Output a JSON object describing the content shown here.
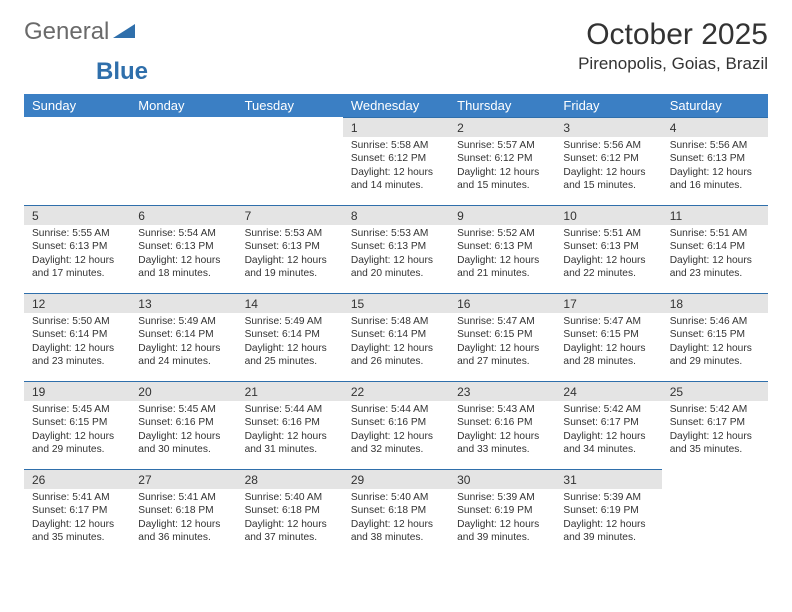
{
  "brand": {
    "part1": "General",
    "part2": "Blue"
  },
  "header": {
    "title": "October 2025",
    "location": "Pirenopolis, Goias, Brazil"
  },
  "colors": {
    "header_bg": "#3b7fc4",
    "header_text": "#ffffff",
    "daynum_bg": "#e4e4e4",
    "day_border": "#2f6fab",
    "text": "#333333",
    "page_bg": "#ffffff"
  },
  "weekdays": [
    "Sunday",
    "Monday",
    "Tuesday",
    "Wednesday",
    "Thursday",
    "Friday",
    "Saturday"
  ],
  "weeks": [
    [
      {
        "empty": true
      },
      {
        "empty": true
      },
      {
        "empty": true
      },
      {
        "day": "1",
        "sunrise": "5:58 AM",
        "sunset": "6:12 PM",
        "daylight": "12 hours and 14 minutes."
      },
      {
        "day": "2",
        "sunrise": "5:57 AM",
        "sunset": "6:12 PM",
        "daylight": "12 hours and 15 minutes."
      },
      {
        "day": "3",
        "sunrise": "5:56 AM",
        "sunset": "6:12 PM",
        "daylight": "12 hours and 15 minutes."
      },
      {
        "day": "4",
        "sunrise": "5:56 AM",
        "sunset": "6:13 PM",
        "daylight": "12 hours and 16 minutes."
      }
    ],
    [
      {
        "day": "5",
        "sunrise": "5:55 AM",
        "sunset": "6:13 PM",
        "daylight": "12 hours and 17 minutes."
      },
      {
        "day": "6",
        "sunrise": "5:54 AM",
        "sunset": "6:13 PM",
        "daylight": "12 hours and 18 minutes."
      },
      {
        "day": "7",
        "sunrise": "5:53 AM",
        "sunset": "6:13 PM",
        "daylight": "12 hours and 19 minutes."
      },
      {
        "day": "8",
        "sunrise": "5:53 AM",
        "sunset": "6:13 PM",
        "daylight": "12 hours and 20 minutes."
      },
      {
        "day": "9",
        "sunrise": "5:52 AM",
        "sunset": "6:13 PM",
        "daylight": "12 hours and 21 minutes."
      },
      {
        "day": "10",
        "sunrise": "5:51 AM",
        "sunset": "6:13 PM",
        "daylight": "12 hours and 22 minutes."
      },
      {
        "day": "11",
        "sunrise": "5:51 AM",
        "sunset": "6:14 PM",
        "daylight": "12 hours and 23 minutes."
      }
    ],
    [
      {
        "day": "12",
        "sunrise": "5:50 AM",
        "sunset": "6:14 PM",
        "daylight": "12 hours and 23 minutes."
      },
      {
        "day": "13",
        "sunrise": "5:49 AM",
        "sunset": "6:14 PM",
        "daylight": "12 hours and 24 minutes."
      },
      {
        "day": "14",
        "sunrise": "5:49 AM",
        "sunset": "6:14 PM",
        "daylight": "12 hours and 25 minutes."
      },
      {
        "day": "15",
        "sunrise": "5:48 AM",
        "sunset": "6:14 PM",
        "daylight": "12 hours and 26 minutes."
      },
      {
        "day": "16",
        "sunrise": "5:47 AM",
        "sunset": "6:15 PM",
        "daylight": "12 hours and 27 minutes."
      },
      {
        "day": "17",
        "sunrise": "5:47 AM",
        "sunset": "6:15 PM",
        "daylight": "12 hours and 28 minutes."
      },
      {
        "day": "18",
        "sunrise": "5:46 AM",
        "sunset": "6:15 PM",
        "daylight": "12 hours and 29 minutes."
      }
    ],
    [
      {
        "day": "19",
        "sunrise": "5:45 AM",
        "sunset": "6:15 PM",
        "daylight": "12 hours and 29 minutes."
      },
      {
        "day": "20",
        "sunrise": "5:45 AM",
        "sunset": "6:16 PM",
        "daylight": "12 hours and 30 minutes."
      },
      {
        "day": "21",
        "sunrise": "5:44 AM",
        "sunset": "6:16 PM",
        "daylight": "12 hours and 31 minutes."
      },
      {
        "day": "22",
        "sunrise": "5:44 AM",
        "sunset": "6:16 PM",
        "daylight": "12 hours and 32 minutes."
      },
      {
        "day": "23",
        "sunrise": "5:43 AM",
        "sunset": "6:16 PM",
        "daylight": "12 hours and 33 minutes."
      },
      {
        "day": "24",
        "sunrise": "5:42 AM",
        "sunset": "6:17 PM",
        "daylight": "12 hours and 34 minutes."
      },
      {
        "day": "25",
        "sunrise": "5:42 AM",
        "sunset": "6:17 PM",
        "daylight": "12 hours and 35 minutes."
      }
    ],
    [
      {
        "day": "26",
        "sunrise": "5:41 AM",
        "sunset": "6:17 PM",
        "daylight": "12 hours and 35 minutes."
      },
      {
        "day": "27",
        "sunrise": "5:41 AM",
        "sunset": "6:18 PM",
        "daylight": "12 hours and 36 minutes."
      },
      {
        "day": "28",
        "sunrise": "5:40 AM",
        "sunset": "6:18 PM",
        "daylight": "12 hours and 37 minutes."
      },
      {
        "day": "29",
        "sunrise": "5:40 AM",
        "sunset": "6:18 PM",
        "daylight": "12 hours and 38 minutes."
      },
      {
        "day": "30",
        "sunrise": "5:39 AM",
        "sunset": "6:19 PM",
        "daylight": "12 hours and 39 minutes."
      },
      {
        "day": "31",
        "sunrise": "5:39 AM",
        "sunset": "6:19 PM",
        "daylight": "12 hours and 39 minutes."
      },
      {
        "empty": true
      }
    ]
  ],
  "labels": {
    "sunrise": "Sunrise:",
    "sunset": "Sunset:",
    "daylight": "Daylight:"
  }
}
